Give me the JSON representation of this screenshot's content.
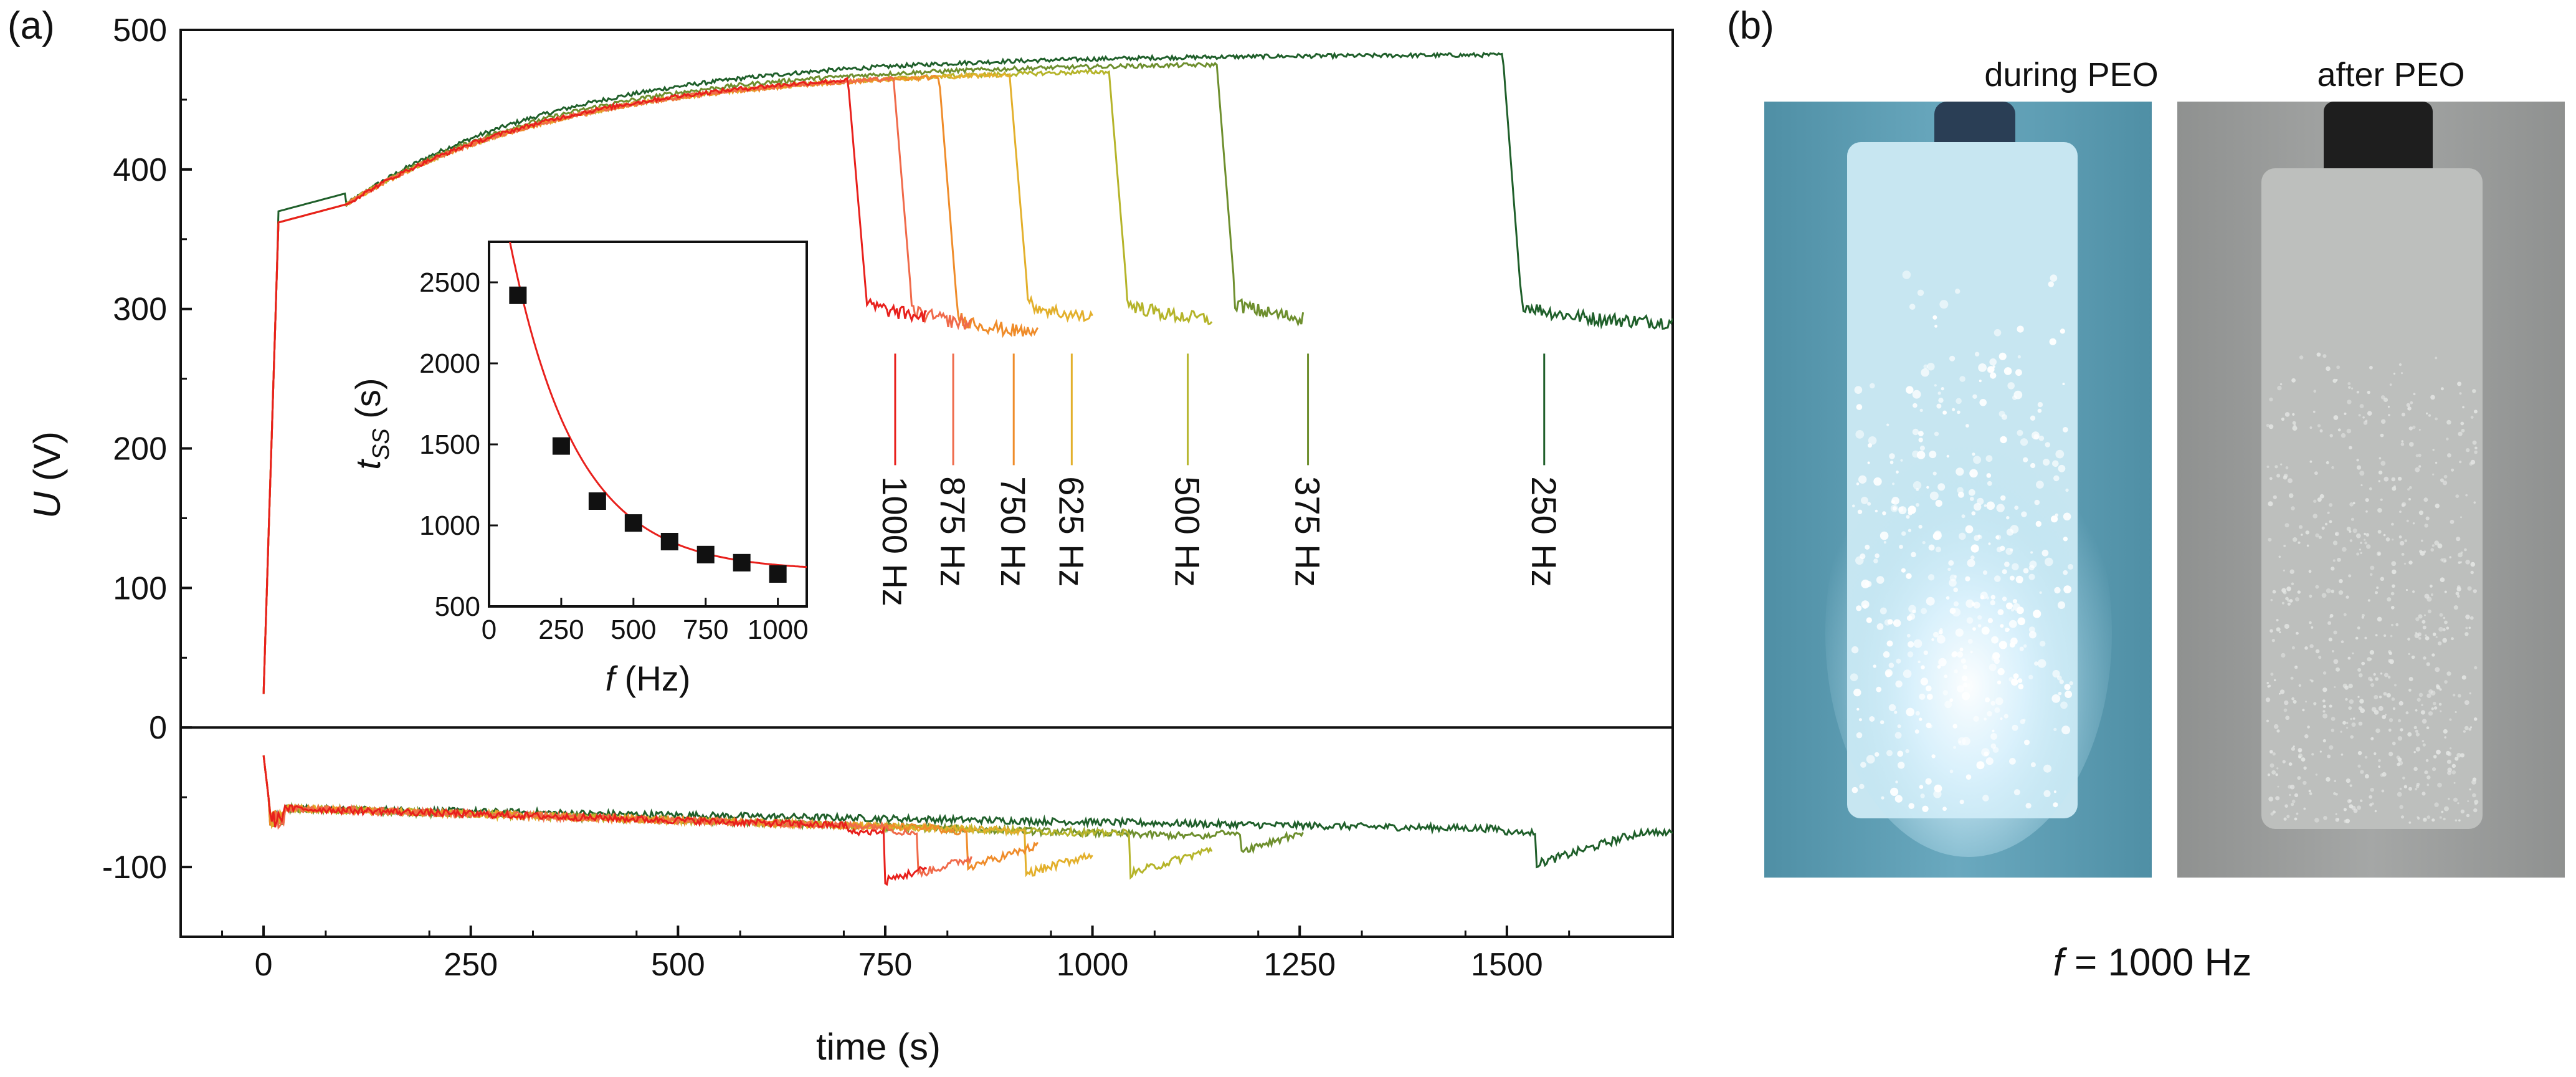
{
  "panel_a": {
    "label": "(a)"
  },
  "panel_b": {
    "label": "(b)",
    "photo_left_caption": "during PEO",
    "photo_right_caption": "after PEO",
    "frequency_prefix": "f",
    "frequency_value": " = 1000 Hz"
  },
  "colors": {
    "250": "#1f5f2a",
    "375": "#6e8f2e",
    "500": "#b5b42a",
    "625": "#e3b02c",
    "750": "#ef8c2a",
    "875": "#f06a4a",
    "1000": "#e8201c",
    "fit": "#e8201c",
    "marker": "#111111"
  },
  "chart_data": [
    {
      "type": "line",
      "title": "",
      "xlabel": "time (s)",
      "ylabel": "U (V)",
      "ylabel_italic": "U",
      "ylabel_rest": " (V)",
      "xlim": [
        -100,
        1700
      ],
      "ylim": [
        -150,
        500
      ],
      "xticks": [
        0,
        250,
        500,
        750,
        1000,
        1250,
        1500
      ],
      "yticks": [
        -100,
        0,
        100,
        200,
        300,
        400,
        500
      ],
      "hline": 0,
      "series": [
        {
          "name": "250 Hz",
          "freq": 250,
          "positive_plateau_end": 482,
          "drop_time": 1495,
          "steady_state": 290,
          "end_time": 1700,
          "negative_min": -98,
          "negative_min_time": 1535
        },
        {
          "name": "375 Hz",
          "freq": 375,
          "positive_plateau_end": 475,
          "drop_time": 1150,
          "steady_state": 290,
          "end_time": 1255,
          "negative_min": -88,
          "negative_min_time": 1180
        },
        {
          "name": "500 Hz",
          "freq": 500,
          "positive_plateau_end": 470,
          "drop_time": 1020,
          "steady_state": 290,
          "end_time": 1145,
          "negative_min": -105,
          "negative_min_time": 1045
        },
        {
          "name": "625 Hz",
          "freq": 625,
          "positive_plateau_end": 468,
          "drop_time": 900,
          "steady_state": 290,
          "end_time": 1000,
          "negative_min": -105,
          "negative_min_time": 920
        },
        {
          "name": "750 Hz",
          "freq": 750,
          "positive_plateau_end": 466,
          "drop_time": 815,
          "steady_state": 280,
          "end_time": 935,
          "negative_min": -100,
          "negative_min_time": 850
        },
        {
          "name": "875 Hz",
          "freq": 875,
          "positive_plateau_end": 465,
          "drop_time": 760,
          "steady_state": 285,
          "end_time": 855,
          "negative_min": -105,
          "negative_min_time": 790
        },
        {
          "name": "1000 Hz",
          "freq": 1000,
          "positive_plateau_end": 464,
          "drop_time": 705,
          "steady_state": 290,
          "end_time": 800,
          "negative_min": -110,
          "negative_min_time": 750
        }
      ],
      "annotations": [
        {
          "text": "250 Hz",
          "x": 1545
        },
        {
          "text": "375 Hz",
          "x": 1260
        },
        {
          "text": "500 Hz",
          "x": 1115
        },
        {
          "text": "625 Hz",
          "x": 975
        },
        {
          "text": "750 Hz",
          "x": 905
        },
        {
          "text": "875 Hz",
          "x": 832
        },
        {
          "text": "1000 Hz",
          "x": 762
        }
      ]
    },
    {
      "type": "scatter",
      "title": "",
      "xlabel": "f (Hz)",
      "xlabel_italic": "f",
      "xlabel_rest": " (Hz)",
      "ylabel": "tss (s)",
      "ylabel_main": "t",
      "ylabel_sub": "SS",
      "ylabel_rest": " (s)",
      "xlim": [
        0,
        1100
      ],
      "ylim": [
        500,
        2750
      ],
      "xticks": [
        0,
        250,
        500,
        750,
        1000
      ],
      "yticks": [
        500,
        1000,
        1500,
        2000,
        2500
      ],
      "x": [
        100,
        250,
        375,
        500,
        625,
        750,
        875,
        1000
      ],
      "y": [
        2420,
        1490,
        1150,
        1015,
        900,
        820,
        770,
        700
      ],
      "fit": {
        "type": "exponential decay",
        "y0": 720,
        "A": 2780,
        "t": 230
      }
    }
  ]
}
